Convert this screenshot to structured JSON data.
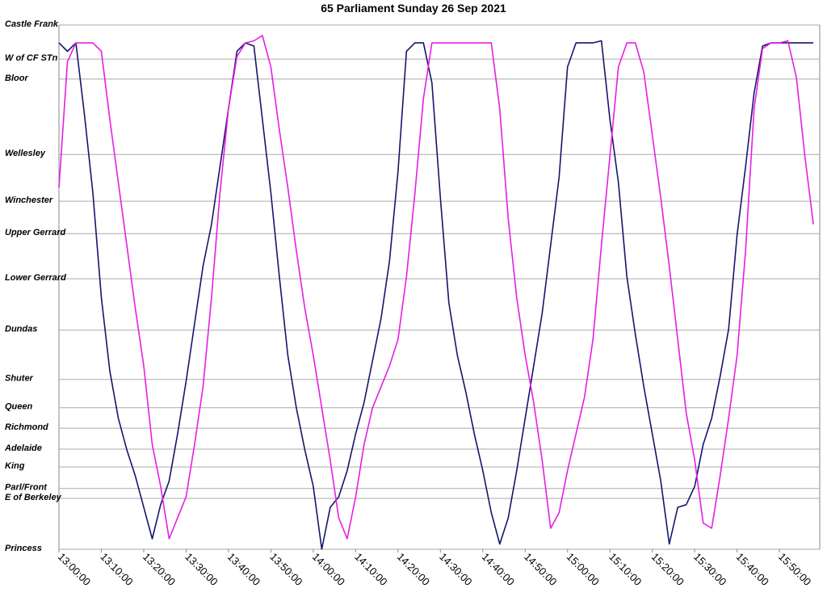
{
  "chart_data": {
    "type": "line",
    "title": "65 Parliament Sunday 26 Sep 2021",
    "x": [
      "13:00:00",
      "13:02:00",
      "13:04:00",
      "13:06:00",
      "13:08:00",
      "13:10:00",
      "13:12:00",
      "13:14:00",
      "13:16:00",
      "13:18:00",
      "13:20:00",
      "13:22:00",
      "13:24:00",
      "13:26:00",
      "13:28:00",
      "13:30:00",
      "13:32:00",
      "13:34:00",
      "13:36:00",
      "13:38:00",
      "13:40:00",
      "13:42:00",
      "13:44:00",
      "13:46:00",
      "13:48:00",
      "13:50:00",
      "13:52:00",
      "13:54:00",
      "13:56:00",
      "13:58:00",
      "14:00:00",
      "14:02:00",
      "14:04:00",
      "14:06:00",
      "14:08:00",
      "14:10:00",
      "14:12:00",
      "14:14:00",
      "14:16:00",
      "14:18:00",
      "14:20:00",
      "14:22:00",
      "14:24:00",
      "14:26:00",
      "14:28:00",
      "14:30:00",
      "14:32:00",
      "14:34:00",
      "14:36:00",
      "14:38:00",
      "14:40:00",
      "14:42:00",
      "14:44:00",
      "14:46:00",
      "14:48:00",
      "14:50:00",
      "14:52:00",
      "14:54:00",
      "14:56:00",
      "14:58:00",
      "15:00:00",
      "15:02:00",
      "15:04:00",
      "15:06:00",
      "15:08:00",
      "15:10:00",
      "15:12:00",
      "15:14:00",
      "15:16:00",
      "15:18:00",
      "15:20:00",
      "15:22:00",
      "15:24:00",
      "15:26:00",
      "15:28:00",
      "15:30:00",
      "15:32:00",
      "15:34:00",
      "15:36:00",
      "15:38:00",
      "15:40:00",
      "15:42:00",
      "15:44:00",
      "15:46:00",
      "15:48:00",
      "15:50:00",
      "15:52:00",
      "15:54:00",
      "15:56:00",
      "15:58:00"
    ],
    "series": [
      {
        "color": "#14166a",
        "values": [
          96.6,
          95,
          96.6,
          83,
          68,
          48,
          34,
          25,
          19,
          14,
          8,
          2,
          8.5,
          13,
          22,
          32,
          43,
          54,
          62,
          73,
          84,
          95,
          96.6,
          96,
          82,
          68,
          52,
          37,
          27,
          19,
          12,
          0,
          8,
          10,
          15,
          22,
          28,
          36,
          44,
          55,
          72,
          95,
          96.6,
          96.6,
          89,
          67,
          47,
          37,
          30,
          22,
          15,
          7,
          1,
          6,
          15,
          25,
          35,
          45,
          58,
          71,
          92,
          96.6,
          96.6,
          96.6,
          97,
          82,
          70,
          52,
          41,
          31,
          22,
          13,
          1,
          8,
          8.5,
          12,
          20,
          25,
          33,
          42,
          60,
          73,
          87,
          96,
          96.6,
          96.6,
          96.6,
          96.6,
          96.6,
          96.6
        ]
      },
      {
        "color": "#e61ee6",
        "values": [
          69,
          93,
          96.6,
          96.6,
          96.6,
          95,
          82,
          70,
          58,
          46,
          35,
          20,
          12,
          2,
          6,
          10,
          20,
          31,
          48,
          68,
          84,
          94,
          96.6,
          97,
          98,
          92,
          80,
          69,
          57,
          46,
          37,
          27,
          17,
          6,
          2,
          10,
          20,
          27,
          31,
          35,
          40,
          52,
          68,
          86,
          96.6,
          96.6,
          96.6,
          96.6,
          96.6,
          96.6,
          96.6,
          96.6,
          84,
          63,
          48,
          37,
          28,
          17,
          4,
          7,
          15,
          22,
          29,
          40,
          58,
          75,
          92,
          96.6,
          96.6,
          91,
          79,
          67,
          54,
          40,
          26,
          17,
          5,
          4,
          14,
          25,
          37,
          57,
          84,
          95.5,
          96.6,
          96.6,
          97,
          90,
          75,
          62
        ]
      }
    ],
    "xlim": [
      "13:00:00",
      "15:59:30"
    ],
    "xticks": [
      "13:00:00",
      "13:10:00",
      "13:20:00",
      "13:30:00",
      "13:40:00",
      "13:50:00",
      "14:00:00",
      "14:10:00",
      "14:20:00",
      "14:30:00",
      "14:40:00",
      "14:50:00",
      "15:00:00",
      "15:10:00",
      "15:20:00",
      "15:30:00",
      "15:40:00",
      "15:50:00"
    ],
    "ylim": [
      0,
      100
    ],
    "yticks": [
      {
        "value": 100,
        "label": "Castle Frank"
      },
      {
        "value": 93.5,
        "label": "W of CF STn"
      },
      {
        "value": 89.7,
        "label": "Bloor"
      },
      {
        "value": 75.3,
        "label": "Wellesley"
      },
      {
        "value": 66.4,
        "label": "Winchester"
      },
      {
        "value": 60.2,
        "label": "Upper Gerrard"
      },
      {
        "value": 51.6,
        "label": "Lower Gerrard"
      },
      {
        "value": 41.8,
        "label": "Dundas"
      },
      {
        "value": 32.4,
        "label": "Shuter"
      },
      {
        "value": 27.0,
        "label": "Queen"
      },
      {
        "value": 23.1,
        "label": "Richmond"
      },
      {
        "value": 19.1,
        "label": "Adelaide"
      },
      {
        "value": 15.7,
        "label": "King"
      },
      {
        "value": 11.6,
        "label": "Parl/Front"
      },
      {
        "value": 9.7,
        "label": "E of Berkeley"
      },
      {
        "value": 0,
        "label": "Princess"
      }
    ],
    "grid": true
  }
}
